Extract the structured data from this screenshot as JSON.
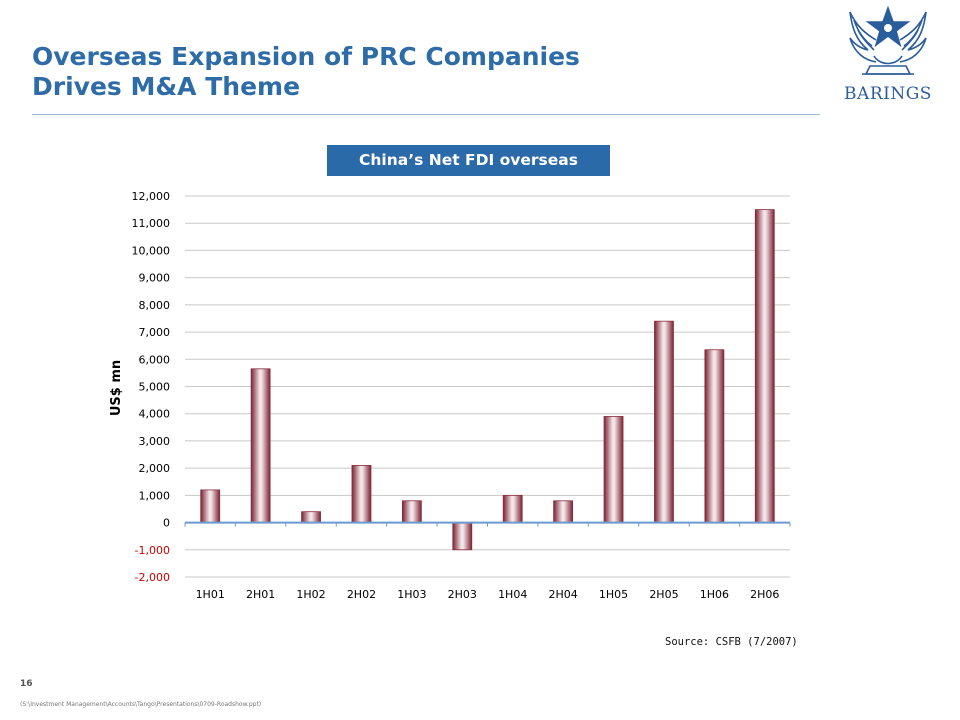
{
  "slide": {
    "title_line1": "Overseas Expansion of PRC Companies",
    "title_line2": "Drives M&A Theme",
    "logo_text": "BARINGS",
    "page_number": "16",
    "file_path": "(S:\\Investment Management\\Accounts\\Tango\\Presentations\\0709-Roadshow.ppt)",
    "source": "Source: CSFB (7/2007)"
  },
  "colors": {
    "title": "#2e6ca8",
    "header_box": "#2b6aa8",
    "bar": "#8b2c3c",
    "zero_line": "#6a9ad0",
    "negative_tick": "#cc0000"
  },
  "chart_data": {
    "type": "bar",
    "title": "China’s Net FDI overseas",
    "ylabel": "US$ mn",
    "xlabel": "",
    "categories": [
      "1H01",
      "2H01",
      "1H02",
      "2H02",
      "1H03",
      "2H03",
      "1H04",
      "2H04",
      "1H05",
      "2H05",
      "1H06",
      "2H06"
    ],
    "values": [
      1200,
      5650,
      400,
      2100,
      800,
      -1000,
      1000,
      800,
      3900,
      7400,
      6350,
      11500
    ],
    "ylim": [
      -2000,
      12000
    ],
    "yticks": [
      -2000,
      -1000,
      0,
      1000,
      2000,
      3000,
      4000,
      5000,
      6000,
      7000,
      8000,
      9000,
      10000,
      11000,
      12000
    ],
    "ytick_labels": [
      "-2,000",
      "-1,000",
      "0",
      "1,000",
      "2,000",
      "3,000",
      "4,000",
      "5,000",
      "6,000",
      "7,000",
      "8,000",
      "9,000",
      "10,000",
      "11,000",
      "12,000"
    ],
    "grid": true,
    "legend": "none"
  }
}
